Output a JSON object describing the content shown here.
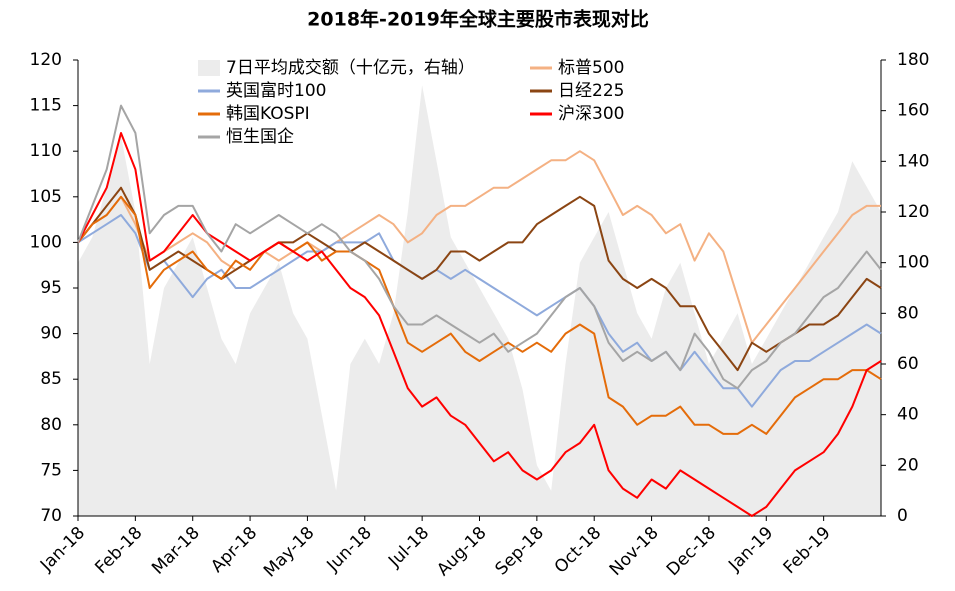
{
  "chart_data": {
    "type": "line",
    "title": "2018年-2019年全球主要股市表现对比",
    "categories": [
      "Jan-18",
      null,
      null,
      null,
      "Feb-18",
      null,
      null,
      null,
      "Mar-18",
      null,
      null,
      null,
      "Apr-18",
      null,
      null,
      null,
      "May-18",
      null,
      null,
      null,
      "Jun-18",
      null,
      null,
      null,
      "Jul-18",
      null,
      null,
      null,
      "Aug-18",
      null,
      null,
      null,
      "Sep-18",
      null,
      null,
      null,
      "Oct-18",
      null,
      null,
      null,
      "Nov-18",
      null,
      null,
      null,
      "Dec-18",
      null,
      null,
      null,
      "Jan-19",
      null,
      null,
      null,
      "Feb-19",
      null,
      null,
      null,
      null
    ],
    "ylim": [
      70,
      120
    ],
    "yticks": [
      70,
      75,
      80,
      85,
      90,
      95,
      100,
      105,
      110,
      115,
      120
    ],
    "y2lim": [
      0,
      180
    ],
    "y2ticks": [
      0,
      20,
      40,
      60,
      80,
      100,
      120,
      140,
      160,
      180
    ],
    "series": [
      {
        "name": "7日平均成交额（十亿元，右轴）",
        "color": "#ececec",
        "kind": "area",
        "axis": "y2",
        "values": [
          100,
          110,
          130,
          150,
          120,
          60,
          90,
          100,
          110,
          90,
          70,
          60,
          80,
          90,
          100,
          80,
          70,
          40,
          10,
          60,
          70,
          60,
          80,
          120,
          170,
          140,
          110,
          100,
          90,
          80,
          70,
          50,
          20,
          10,
          60,
          100,
          110,
          120,
          100,
          80,
          70,
          90,
          100,
          80,
          60,
          70,
          80,
          60,
          70,
          80,
          90,
          100,
          110,
          120,
          140,
          130,
          120
        ]
      },
      {
        "name": "标普500",
        "color": "#f4b183",
        "values": [
          100,
          102,
          103,
          105,
          102,
          98,
          99,
          100,
          101,
          100,
          98,
          97,
          98,
          99,
          98,
          99,
          100,
          99,
          100,
          101,
          102,
          103,
          102,
          100,
          101,
          103,
          104,
          104,
          105,
          106,
          106,
          107,
          108,
          109,
          109,
          110,
          109,
          106,
          103,
          104,
          103,
          101,
          102,
          98,
          101,
          99,
          94,
          89,
          91,
          93,
          95,
          97,
          99,
          101,
          103,
          104,
          104
        ]
      },
      {
        "name": "英国富时100",
        "color": "#8faadc",
        "values": [
          100,
          101,
          102,
          103,
          101,
          97,
          98,
          96,
          94,
          96,
          97,
          95,
          95,
          96,
          97,
          98,
          99,
          99,
          100,
          100,
          100,
          101,
          98,
          97,
          96,
          97,
          96,
          97,
          96,
          95,
          94,
          93,
          92,
          93,
          94,
          95,
          93,
          90,
          88,
          89,
          87,
          88,
          86,
          88,
          86,
          84,
          84,
          82,
          84,
          86,
          87,
          87,
          88,
          89,
          90,
          91,
          90
        ]
      },
      {
        "name": "日经225",
        "color": "#8b4513",
        "values": [
          100,
          102,
          104,
          106,
          103,
          97,
          98,
          99,
          98,
          97,
          96,
          97,
          98,
          99,
          100,
          100,
          101,
          100,
          99,
          99,
          100,
          99,
          98,
          97,
          96,
          97,
          99,
          99,
          98,
          99,
          100,
          100,
          102,
          103,
          104,
          105,
          104,
          98,
          96,
          95,
          96,
          95,
          93,
          93,
          90,
          88,
          86,
          89,
          88,
          89,
          90,
          91,
          91,
          92,
          94,
          96,
          95
        ]
      },
      {
        "name": "韩国KOSPI",
        "color": "#e46c0a",
        "values": [
          100,
          102,
          103,
          105,
          103,
          95,
          97,
          98,
          99,
          97,
          96,
          98,
          97,
          99,
          100,
          99,
          100,
          98,
          99,
          99,
          98,
          97,
          93,
          89,
          88,
          89,
          90,
          88,
          87,
          88,
          89,
          88,
          89,
          88,
          90,
          91,
          90,
          83,
          82,
          80,
          81,
          81,
          82,
          80,
          80,
          79,
          79,
          80,
          79,
          81,
          83,
          84,
          85,
          85,
          86,
          86,
          85
        ]
      },
      {
        "name": "沪深300",
        "color": "#ff0000",
        "values": [
          100,
          103,
          106,
          112,
          108,
          98,
          99,
          101,
          103,
          101,
          100,
          99,
          98,
          99,
          100,
          99,
          98,
          99,
          97,
          95,
          94,
          92,
          88,
          84,
          82,
          83,
          81,
          80,
          78,
          76,
          77,
          75,
          74,
          75,
          77,
          78,
          80,
          75,
          73,
          72,
          74,
          73,
          75,
          74,
          73,
          72,
          71,
          70,
          71,
          73,
          75,
          76,
          77,
          79,
          82,
          86,
          87
        ]
      },
      {
        "name": "恒生国企",
        "color": "#a5a5a5",
        "values": [
          100,
          104,
          108,
          115,
          112,
          101,
          103,
          104,
          104,
          101,
          99,
          102,
          101,
          102,
          103,
          102,
          101,
          102,
          101,
          99,
          98,
          96,
          93,
          91,
          91,
          92,
          91,
          90,
          89,
          90,
          88,
          89,
          90,
          92,
          94,
          95,
          93,
          89,
          87,
          88,
          87,
          88,
          86,
          90,
          88,
          85,
          84,
          86,
          87,
          89,
          90,
          92,
          94,
          95,
          97,
          99,
          97
        ]
      }
    ]
  }
}
